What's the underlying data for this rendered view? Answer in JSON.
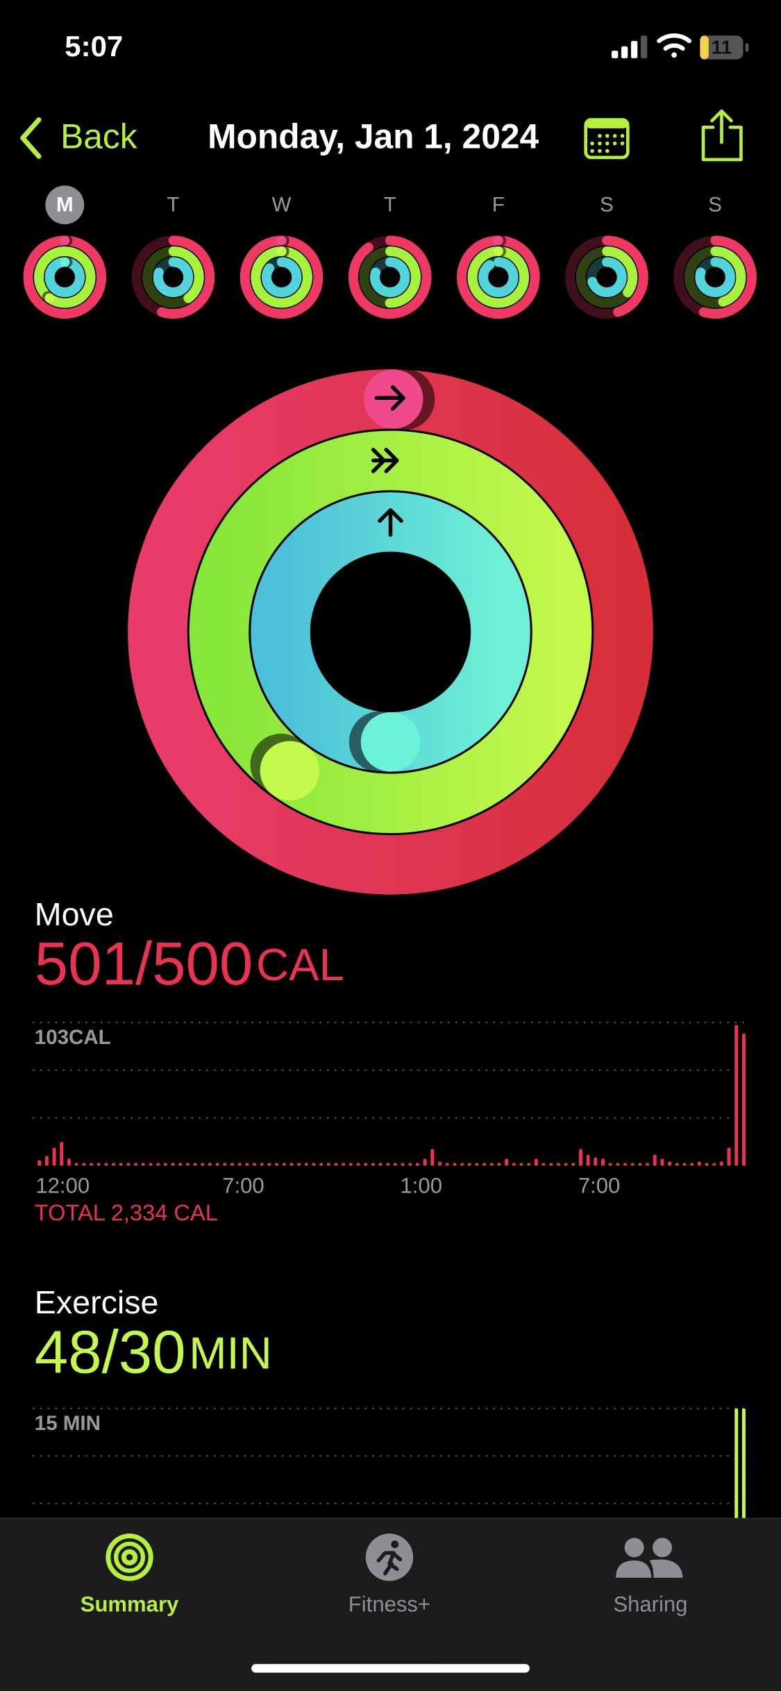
{
  "status_bar": {
    "time": "5:07",
    "battery": "11"
  },
  "nav": {
    "back": "Back",
    "title": "Monday, Jan 1, 2024"
  },
  "week": [
    {
      "day": "M",
      "move": 1.0,
      "exercise": 1.6,
      "stand": 1.0,
      "selected": true
    },
    {
      "day": "T",
      "move": 0.55,
      "exercise": 0.4,
      "stand": 0.8
    },
    {
      "day": "W",
      "move": 1.0,
      "exercise": 1.0,
      "stand": 0.85
    },
    {
      "day": "T",
      "move": 0.9,
      "exercise": 0.5,
      "stand": 0.8
    },
    {
      "day": "F",
      "move": 1.0,
      "exercise": 1.0,
      "stand": 0.9
    },
    {
      "day": "S",
      "move": 0.45,
      "exercise": 0.35,
      "stand": 0.7
    },
    {
      "day": "S",
      "move": 0.55,
      "exercise": 0.45,
      "stand": 0.8
    }
  ],
  "rings": {
    "stand": 1.5
  },
  "move": {
    "label": "Move",
    "amount": "501/500",
    "unit": "CAL",
    "color": "#ea3352",
    "chart": {
      "type": "bar",
      "xlim": [
        0,
        24
      ],
      "xticks": [
        {
          "value": 0,
          "label": "12:00"
        },
        {
          "value": 7,
          "label": "7:00"
        },
        {
          "value": 13,
          "label": "1:00"
        },
        {
          "value": 19,
          "label": "7:00"
        }
      ],
      "ylim": [
        0,
        103
      ],
      "yticks": [
        {
          "value": 103,
          "label": "103CAL"
        }
      ],
      "values": [
        4,
        7,
        13,
        17,
        5,
        2,
        2,
        2,
        2,
        2,
        2,
        2,
        2,
        2,
        2,
        2,
        2,
        2,
        2,
        2,
        2,
        2,
        2,
        2,
        2,
        2,
        2,
        2,
        2,
        2,
        2,
        2,
        2,
        2,
        2,
        2,
        2,
        2,
        2,
        2,
        2,
        2,
        2,
        2,
        2,
        2,
        2,
        2,
        2,
        2,
        2,
        2,
        5,
        12,
        3,
        2,
        2,
        2,
        2,
        2,
        2,
        2,
        2,
        5,
        2,
        2,
        2,
        5,
        2,
        2,
        2,
        2,
        2,
        12,
        8,
        6,
        5,
        2,
        2,
        2,
        2,
        2,
        2,
        8,
        5,
        3,
        2,
        2,
        2,
        3,
        2,
        2,
        3,
        13,
        101,
        95
      ]
    },
    "total": "TOTAL 2,334 CAL"
  },
  "exercise": {
    "label": "Exercise",
    "amount": "48/30",
    "unit": "MIN",
    "color": "#c3f94e",
    "chart": {
      "type": "bar",
      "xlim": [
        0,
        24
      ],
      "ylim": [
        0,
        15
      ],
      "yticks": [
        {
          "value": 15,
          "label": "15 MIN"
        }
      ],
      "values": [
        0,
        0,
        0,
        0,
        0,
        0,
        0,
        0,
        0,
        0,
        0,
        0,
        0,
        0,
        0,
        0,
        0,
        0,
        0,
        0,
        0,
        0,
        0,
        0,
        0,
        0,
        0,
        0,
        0,
        0,
        0,
        0,
        0,
        0,
        0,
        0,
        0,
        0,
        0,
        0,
        0,
        0,
        0,
        0,
        0,
        0,
        0,
        0,
        0,
        0,
        0,
        0,
        0,
        0,
        0,
        0,
        0,
        0,
        0,
        0,
        0,
        0,
        0,
        0,
        0,
        0,
        0,
        0,
        0,
        0,
        0,
        0,
        0,
        0,
        0,
        0,
        0,
        0,
        0,
        0,
        0,
        0,
        0,
        0,
        0,
        0,
        0,
        0,
        0,
        0,
        0,
        0,
        0,
        0,
        15,
        15
      ]
    }
  },
  "tabs": [
    {
      "label": "Summary",
      "active": true
    },
    {
      "label": "Fitness+"
    },
    {
      "label": "Sharing"
    }
  ]
}
